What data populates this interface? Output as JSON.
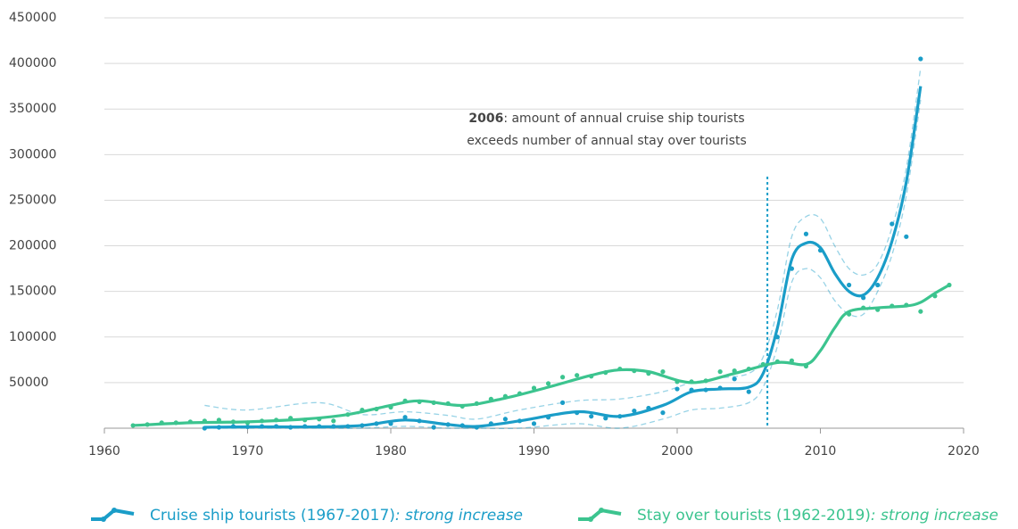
{
  "chart_data": {
    "type": "scatter-trend",
    "xlim": [
      1960,
      2020
    ],
    "xticks": [
      1960,
      1970,
      1980,
      1990,
      2000,
      2010,
      2020
    ],
    "ylim": [
      0,
      450000
    ],
    "yticks": [
      50000,
      100000,
      150000,
      200000,
      250000,
      300000,
      350000,
      400000,
      450000
    ],
    "grid": true,
    "annotation": {
      "bold": "2006",
      "text": ": amount of  annual cruise ship tourists",
      "line2": "exceeds number of annual stay over tourists",
      "x": 2006.3
    },
    "series": [
      {
        "name": "Cruise ship tourists (1967-2017)",
        "note": ": strong increase",
        "color": "#1a9dc8",
        "x": [
          1967,
          1968,
          1969,
          1970,
          1971,
          1972,
          1973,
          1974,
          1975,
          1976,
          1977,
          1978,
          1979,
          1980,
          1981,
          1982,
          1983,
          1984,
          1985,
          1986,
          1987,
          1988,
          1989,
          1990,
          1991,
          1992,
          1993,
          1994,
          1995,
          1996,
          1997,
          1998,
          1999,
          2000,
          2001,
          2002,
          2003,
          2004,
          2005,
          2006,
          2007,
          2008,
          2009,
          2010,
          2012,
          2013,
          2014,
          2015,
          2016,
          2017
        ],
        "values": [
          0,
          1000,
          2000,
          1500,
          2000,
          2000,
          1000,
          2000,
          2000,
          2000,
          2000,
          3000,
          5000,
          5000,
          12000,
          8000,
          1000,
          4000,
          3000,
          1000,
          5000,
          10000,
          8000,
          5000,
          12000,
          28000,
          17000,
          13000,
          11000,
          13000,
          19000,
          22000,
          17000,
          43000,
          42000,
          42000,
          44000,
          54000,
          40000,
          70000,
          100000,
          175000,
          213000,
          195000,
          157000,
          143000,
          157000,
          224000,
          210000,
          405000
        ],
        "trend": {
          "x": [
            1967,
            1970,
            1975,
            1978,
            1981,
            1984,
            1986,
            1989,
            1993,
            1996,
            1999,
            2001,
            2003,
            2005,
            2006,
            2007,
            2008,
            2009,
            2010,
            2011,
            2012,
            2013,
            2014,
            2015,
            2016,
            2017
          ],
          "values": [
            1000,
            1500,
            1500,
            3000,
            9000,
            4000,
            2000,
            8000,
            18000,
            13000,
            25000,
            40000,
            43000,
            45000,
            60000,
            110000,
            185000,
            203000,
            198000,
            170000,
            150000,
            146000,
            165000,
            205000,
            270000,
            375000
          ],
          "upper": [
            25000,
            20000,
            28000,
            15000,
            18000,
            14000,
            10000,
            20000,
            30000,
            32000,
            40000,
            50000,
            55000,
            60000,
            78000,
            130000,
            210000,
            232000,
            230000,
            200000,
            175000,
            168000,
            180000,
            220000,
            285000,
            395000
          ],
          "lower": [
            0,
            0,
            0,
            0,
            2000,
            0,
            0,
            0,
            5000,
            0,
            10000,
            20000,
            22000,
            28000,
            45000,
            90000,
            160000,
            175000,
            165000,
            140000,
            125000,
            125000,
            150000,
            190000,
            255000,
            360000
          ]
        }
      },
      {
        "name": "Stay over tourists (1962-2019)",
        "note": ": strong increase",
        "color": "#3cc48f",
        "x": [
          1962,
          1963,
          1964,
          1965,
          1966,
          1967,
          1968,
          1969,
          1970,
          1971,
          1972,
          1973,
          1974,
          1975,
          1976,
          1977,
          1978,
          1979,
          1980,
          1981,
          1982,
          1983,
          1984,
          1985,
          1986,
          1987,
          1988,
          1989,
          1990,
          1991,
          1992,
          1993,
          1994,
          1995,
          1996,
          1997,
          1998,
          1999,
          2000,
          2001,
          2002,
          2003,
          2004,
          2005,
          2006,
          2007,
          2008,
          2009,
          2012,
          2013,
          2014,
          2015,
          2016,
          2017,
          2018,
          2019
        ],
        "values": [
          3000,
          4000,
          6000,
          6000,
          7000,
          8000,
          9000,
          7000,
          6000,
          8000,
          9000,
          11000,
          9000,
          10000,
          8000,
          15000,
          20000,
          21000,
          23000,
          30000,
          29000,
          28000,
          27000,
          24000,
          27000,
          32000,
          35000,
          38000,
          44000,
          49000,
          56000,
          58000,
          57000,
          61000,
          65000,
          63000,
          60000,
          62000,
          51000,
          51000,
          52000,
          62000,
          63000,
          65000,
          70000,
          73000,
          74000,
          68000,
          125000,
          132000,
          130000,
          134000,
          135000,
          128000,
          145000,
          157000
        ],
        "trend": {
          "x": [
            1962,
            1966,
            1970,
            1974,
            1977,
            1980,
            1982,
            1985,
            1988,
            1991,
            1994,
            1996,
            1998,
            2001,
            2004,
            2007,
            2009,
            2010,
            2011,
            2012,
            2014,
            2016,
            2017,
            2018,
            2019
          ],
          "values": [
            3000,
            6000,
            7000,
            10000,
            15000,
            25000,
            30000,
            25000,
            33000,
            45000,
            58000,
            64000,
            62000,
            50000,
            60000,
            72000,
            70000,
            85000,
            110000,
            128000,
            132000,
            134000,
            138000,
            148000,
            157000
          ]
        }
      }
    ]
  }
}
